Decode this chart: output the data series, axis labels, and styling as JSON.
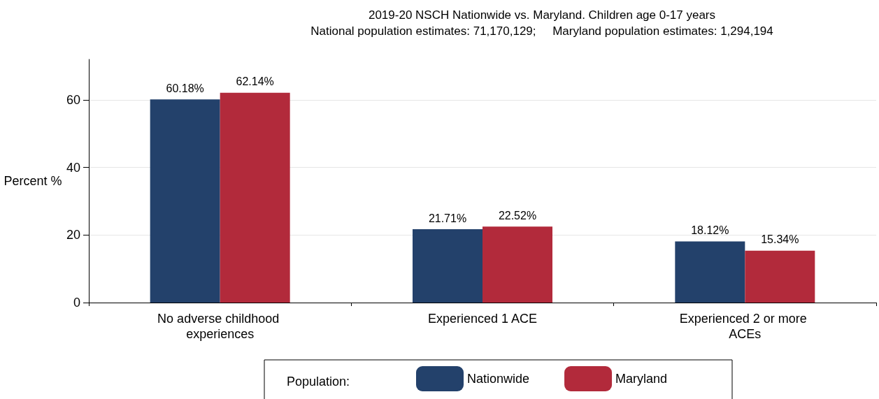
{
  "chart_data": {
    "type": "bar",
    "title": "2019-20 NSCH Nationwide vs. Maryland. Children age 0-17 years",
    "subtitle": "National population estimates: 71,170,129;     Maryland population estimates: 1,294,194",
    "ylabel": "Percent %",
    "legend_title": "Population:",
    "categories": [
      "No adverse childhood experiences",
      "Experienced 1 ACE",
      "Experienced 2 or more ACEs"
    ],
    "series": [
      {
        "name": "Nationwide",
        "color": "#23416b",
        "values": [
          60.18,
          21.71,
          18.12
        ],
        "value_labels": [
          "60.18%",
          "21.71%",
          "18.12%"
        ]
      },
      {
        "name": "Maryland",
        "color": "#b22a3b",
        "values": [
          62.14,
          22.52,
          15.34
        ],
        "value_labels": [
          "62.14%",
          "22.52%",
          "15.34%"
        ]
      }
    ],
    "ylim": [
      0,
      72
    ],
    "yticks": [
      0,
      20,
      40,
      60
    ],
    "grid": "y",
    "legend": "bottom"
  }
}
